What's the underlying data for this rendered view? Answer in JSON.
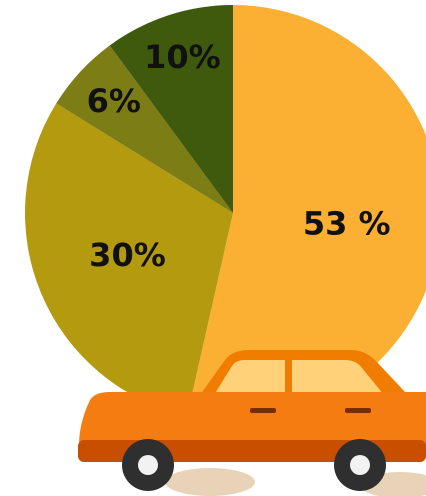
{
  "chart_data": {
    "type": "pie",
    "values": [
      53,
      30,
      6,
      10
    ],
    "value_labels": [
      "53 %",
      "30%",
      "6%",
      "10%"
    ],
    "colors": [
      "#fbb034",
      "#b39a0f",
      "#7d7d15",
      "#3f5a0c"
    ]
  }
}
